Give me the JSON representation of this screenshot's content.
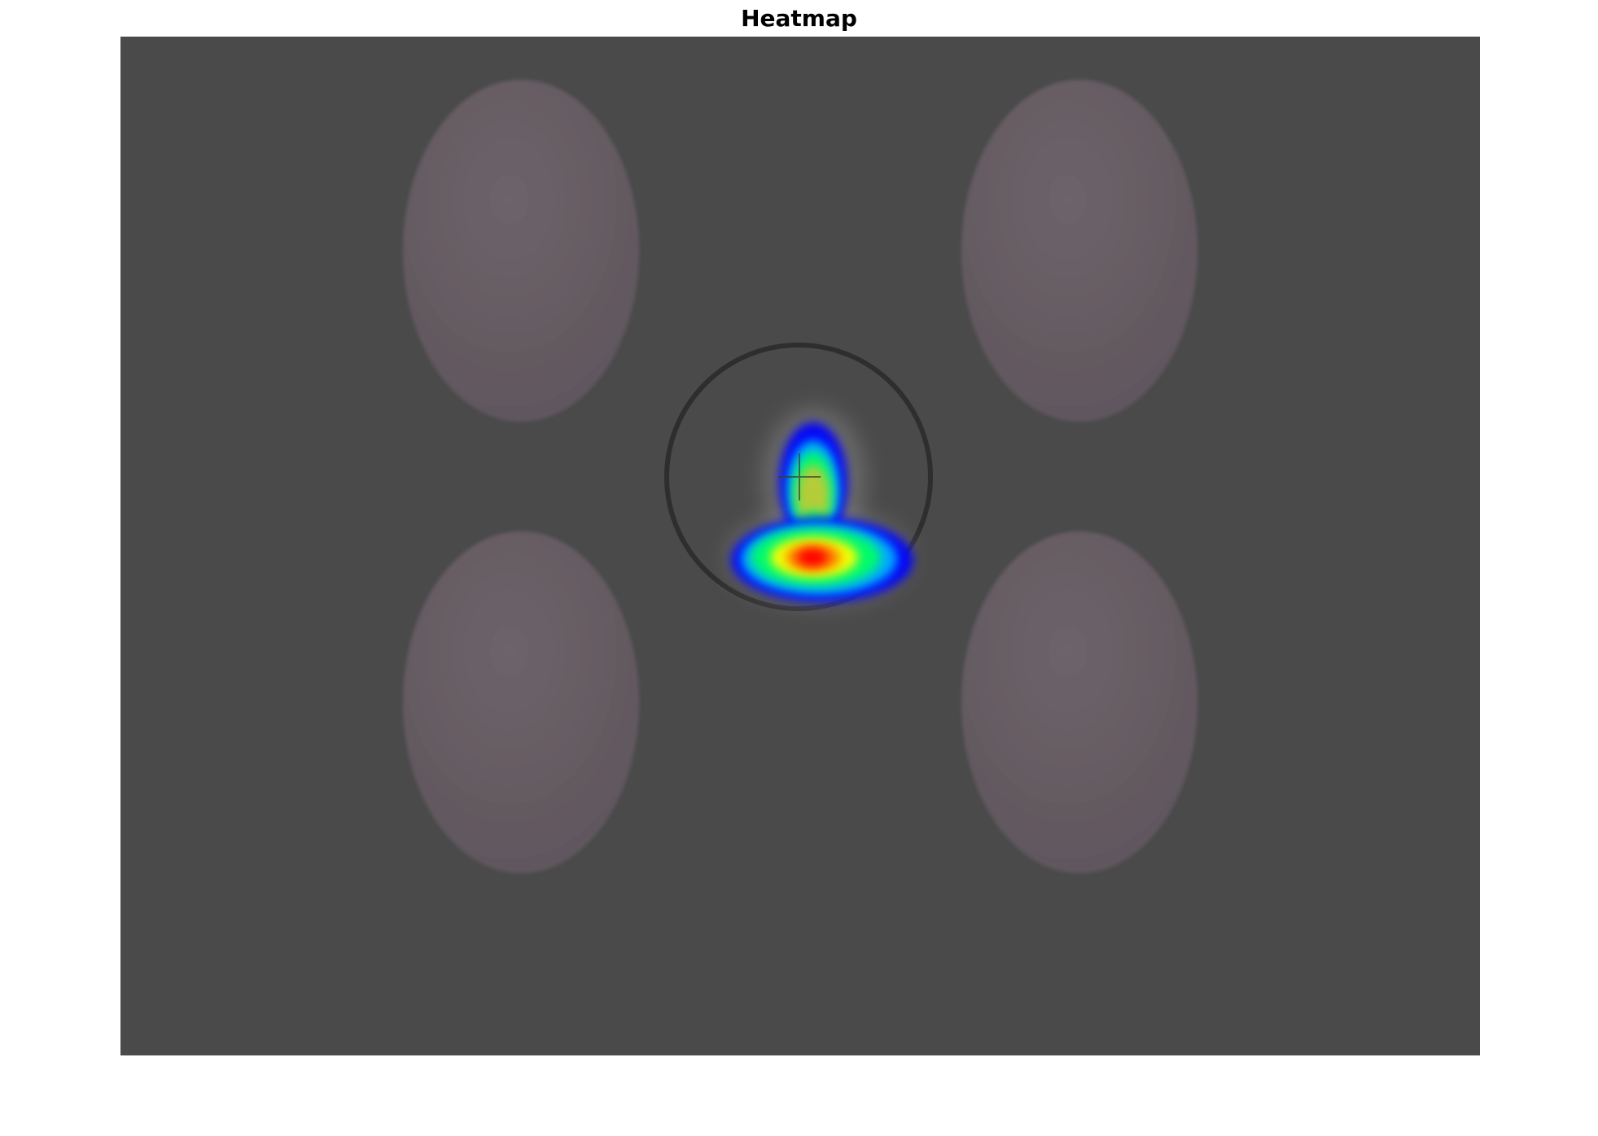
{
  "chart_data": {
    "type": "heatmap",
    "title": "Heatmap",
    "xlabel": "",
    "ylabel": "",
    "grid": false,
    "axes_visible": false,
    "colormap": "jet",
    "colormap_stops": [
      "#0000ff",
      "#00b4ff",
      "#00ff66",
      "#ffff00",
      "#ff7a00",
      "#ff0000"
    ],
    "background_color": "#4a4a4a",
    "stimulus_color": "#6a5f66",
    "fixation_ring_color": "#2e2e2e",
    "stimuli": [
      {
        "name": "face-top-left"
      },
      {
        "name": "face-top-right"
      },
      {
        "name": "face-bottom-left"
      },
      {
        "name": "face-bottom-right"
      }
    ],
    "hotspots": [
      {
        "name": "upper-hotspot",
        "intensity": 0.75
      },
      {
        "name": "lower-hotspot",
        "intensity": 1.0
      }
    ]
  }
}
